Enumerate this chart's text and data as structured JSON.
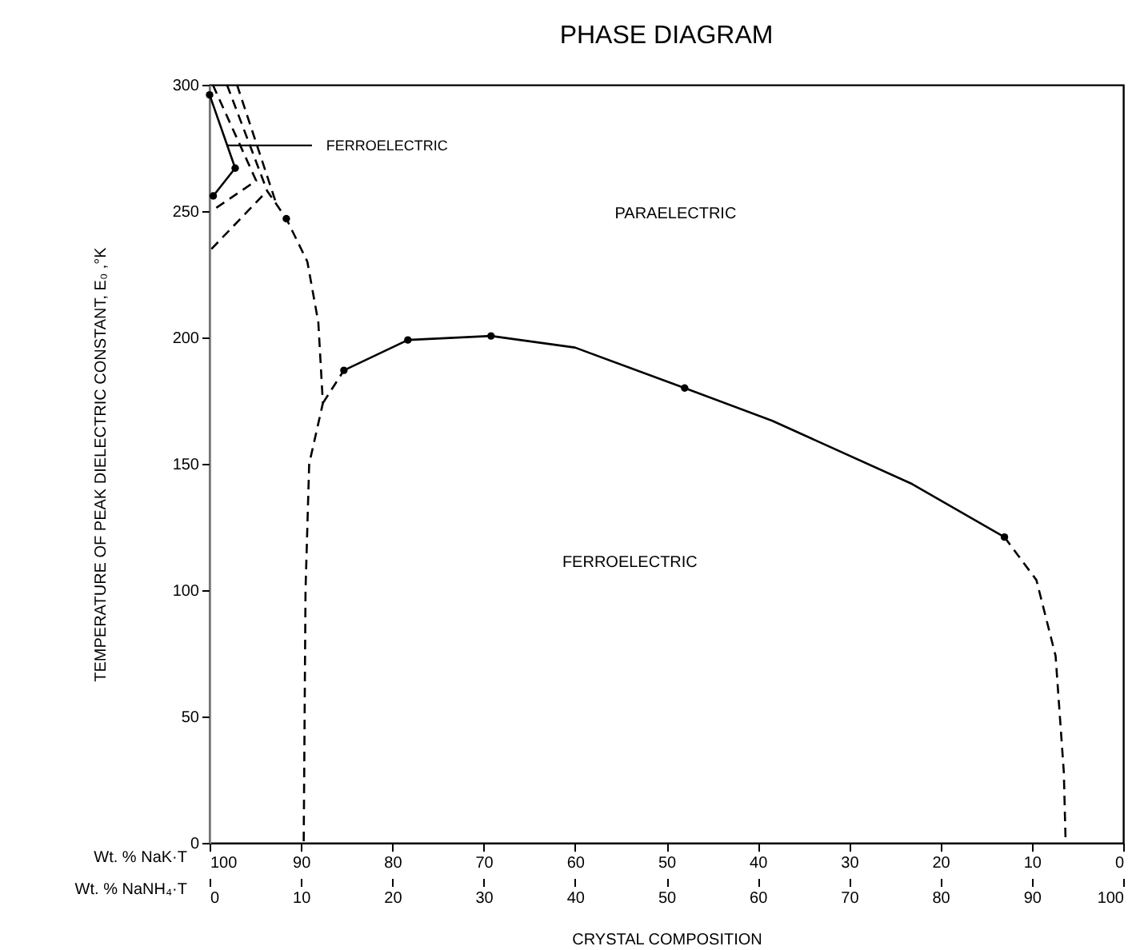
{
  "chart_data": {
    "type": "line",
    "title": "PHASE DIAGRAM",
    "xlabel": "CRYSTAL COMPOSITION",
    "ylabel": "TEMPERATURE OF PEAK DIELECTRIC CONSTANT, E₀ ,°K",
    "x2label": "Wt. % NaK·T",
    "xlim": [
      0,
      100
    ],
    "xticks": [
      0,
      10,
      20,
      30,
      40,
      50,
      60,
      70,
      80,
      90,
      100
    ],
    "x2lim": [
      100,
      0
    ],
    "x2ticks": [
      100,
      90,
      80,
      70,
      60,
      50,
      40,
      30,
      20,
      10,
      0
    ],
    "ylim": [
      0,
      300
    ],
    "yticks": [
      0,
      50,
      100,
      150,
      200,
      250,
      300
    ],
    "grid": false,
    "series": [
      {
        "color": "#000000",
        "line_style": "solid",
        "x": [
          14.7,
          21.7,
          30.8,
          40,
          52,
          61.6,
          76.9,
          87
        ],
        "values": [
          187,
          199,
          200.6,
          196,
          180,
          167,
          142,
          121
        ]
      },
      {
        "color": "#000000",
        "line_style": "dashed",
        "x": [
          87,
          90.5,
          92.6,
          93.5,
          93.7
        ],
        "values": [
          121,
          104,
          74,
          28,
          0
        ]
      },
      {
        "color": "#000000",
        "line_style": "dashed",
        "x": [
          1.9,
          6.3,
          8.4,
          10.7,
          11.9,
          12.4,
          10.9,
          10.5,
          10.3
        ],
        "values": [
          300,
          258,
          247,
          230,
          206,
          174,
          150,
          100,
          0
        ]
      },
      {
        "color": "#000000",
        "line_style": "dashed",
        "x": [
          12.4,
          14.7
        ],
        "values": [
          174,
          187
        ]
      },
      {
        "color": "#000000",
        "line_style": "dashed",
        "x": [
          0.35,
          5.1,
          0.2
        ],
        "values": [
          300,
          262,
          250
        ]
      },
      {
        "color": "#000000",
        "line_style": "dashed",
        "x": [
          3,
          7.2
        ],
        "values": [
          300,
          254
        ]
      },
      {
        "color": "#000000",
        "line_style": "dashed",
        "x": [
          0.2,
          6.3
        ],
        "values": [
          235,
          258
        ]
      },
      {
        "color": "#000000",
        "line_style": "solid",
        "x": [
          0,
          2.8,
          0.4
        ],
        "values": [
          296,
          267,
          256
        ]
      },
      {
        "type": "scatter",
        "color": "#000000",
        "marker": "circle",
        "x": [
          0,
          2.8,
          0.4,
          8.4,
          14.7,
          21.7,
          30.8,
          52,
          87
        ],
        "values": [
          296,
          267,
          256,
          247,
          187,
          199,
          200.6,
          180,
          121
        ]
      }
    ],
    "annotations": [
      {
        "text": "FERROELECTRIC",
        "x": 1.9,
        "y": 276
      },
      "PARAELECTRIC",
      "FERROELECTRIC",
      "Wt. % NaNH₄·T"
    ]
  }
}
